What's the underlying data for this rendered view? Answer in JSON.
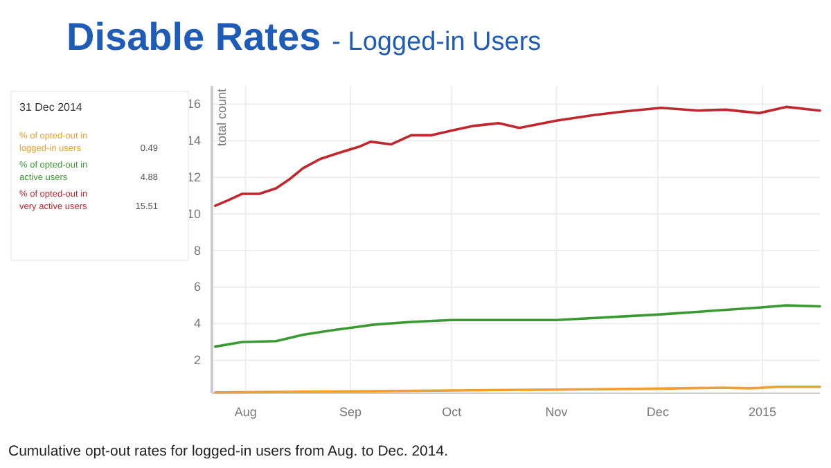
{
  "chart_data": {
    "type": "line",
    "title": "Disable Rates",
    "subtitle": "- Logged-in Users",
    "ylabel": "total count",
    "xlim": [
      "2014-07-22",
      "2015-01-18"
    ],
    "xticks": [
      {
        "value": "2014-08-01",
        "label": "Aug"
      },
      {
        "value": "2014-09-01",
        "label": "Sep"
      },
      {
        "value": "2014-10-01",
        "label": "Oct"
      },
      {
        "value": "2014-11-01",
        "label": "Nov"
      },
      {
        "value": "2014-12-01",
        "label": "Dec"
      },
      {
        "value": "2015-01-01",
        "label": "2015"
      }
    ],
    "ylim": [
      0.2,
      17
    ],
    "yticks": [
      2,
      4,
      6,
      8,
      10,
      12,
      14,
      16
    ],
    "grid": true,
    "legend": "left",
    "marker": "none",
    "line_style": "solid",
    "series": [
      {
        "name": "% of opted-out in logged-in users",
        "color": "#f0a030",
        "x": [
          "2014-07-23",
          "2014-09-01",
          "2014-10-01",
          "2014-11-01",
          "2014-12-01",
          "2014-12-20",
          "2014-12-28",
          "2014-12-31",
          "2015-01-05",
          "2015-01-18"
        ],
        "values": [
          0.25,
          0.3,
          0.35,
          0.4,
          0.45,
          0.5,
          0.47,
          0.49,
          0.55,
          0.55
        ]
      },
      {
        "name": "% of opted-out in active users",
        "color": "#3a9a32",
        "x": [
          "2014-07-23",
          "2014-07-31",
          "2014-08-10",
          "2014-08-18",
          "2014-08-27",
          "2014-09-08",
          "2014-09-19",
          "2014-10-01",
          "2014-11-01",
          "2014-12-01",
          "2014-12-31",
          "2015-01-08",
          "2015-01-18"
        ],
        "values": [
          2.75,
          3.0,
          3.05,
          3.4,
          3.65,
          3.95,
          4.1,
          4.2,
          4.2,
          4.5,
          4.88,
          5.0,
          4.95
        ]
      },
      {
        "name": "% of opted-out in very active users",
        "color": "#c0272d",
        "x": [
          "2014-07-23",
          "2014-07-27",
          "2014-07-31",
          "2014-08-05",
          "2014-08-10",
          "2014-08-14",
          "2014-08-18",
          "2014-08-23",
          "2014-08-28",
          "2014-09-04",
          "2014-09-07",
          "2014-09-13",
          "2014-09-19",
          "2014-09-25",
          "2014-10-02",
          "2014-10-07",
          "2014-10-15",
          "2014-10-21",
          "2014-11-01",
          "2014-11-12",
          "2014-11-21",
          "2014-12-02",
          "2014-12-13",
          "2014-12-21",
          "2014-12-31",
          "2015-01-08",
          "2015-01-18"
        ],
        "values": [
          10.45,
          10.76,
          11.1,
          11.1,
          11.4,
          11.9,
          12.5,
          13.0,
          13.3,
          13.7,
          13.95,
          13.8,
          14.3,
          14.3,
          14.6,
          14.8,
          14.96,
          14.7,
          15.1,
          15.4,
          15.6,
          15.8,
          15.65,
          15.7,
          15.51,
          15.85,
          15.65
        ]
      }
    ],
    "annotations": [
      "31 Dec 2014",
      "0.49",
      "4.88",
      "15.51",
      "Cumulative opt-out rates for logged-in users from Aug. to Dec. 2014."
    ]
  }
}
